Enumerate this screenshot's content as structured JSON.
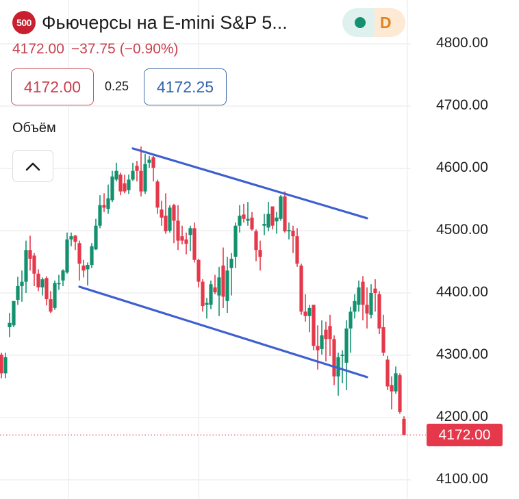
{
  "header": {
    "symbol_badge": "500",
    "title": "Фьючерсы на E-mini S&P 5...",
    "status": {
      "market_dot_color": "#13916f",
      "interval": "D"
    },
    "last_price": "4172.00",
    "change": "−37.75",
    "change_pct": "(−0.90%)"
  },
  "quote": {
    "bid": "4172.00",
    "spread": "0.25",
    "ask": "4172.25"
  },
  "indicator": {
    "volume_label": "Объём",
    "collapse_icon": "chevron-up-icon"
  },
  "colors": {
    "up": "#13916f",
    "down": "#e5384a",
    "trendline": "#3e5fcf",
    "grid": "#efefef",
    "last_price_line": "#e5384a"
  },
  "price_axis": {
    "labels": [
      "4800.00",
      "4700.00",
      "4600.00",
      "4500.00",
      "4400.00",
      "4300.00",
      "4200.00",
      "4100.00"
    ],
    "last_price_tag": "4172.00"
  },
  "chart_data": {
    "type": "candlestick",
    "title": "Фьючерсы на E-mini S&P 500",
    "interval": "D",
    "ylim": [
      4070,
      4870
    ],
    "yticks": [
      4800,
      4700,
      4600,
      4500,
      4400,
      4300,
      4200,
      4100
    ],
    "last_price": 4172.0,
    "grid": true,
    "ohlc_fields": [
      "open",
      "high",
      "low",
      "close"
    ],
    "candles": [
      [
        4301,
        4304,
        4263,
        4271
      ],
      [
        4271,
        4304,
        4263,
        4297
      ],
      [
        4345,
        4368,
        4329,
        4352
      ],
      [
        4348,
        4387,
        4345,
        4387
      ],
      [
        4389,
        4426,
        4381,
        4411
      ],
      [
        4411,
        4436,
        4386,
        4418
      ],
      [
        4418,
        4484,
        4400,
        4469
      ],
      [
        4469,
        4492,
        4436,
        4455
      ],
      [
        4460,
        4464,
        4411,
        4431
      ],
      [
        4431,
        4438,
        4403,
        4409
      ],
      [
        4409,
        4425,
        4396,
        4422
      ],
      [
        4424,
        4427,
        4380,
        4390
      ],
      [
        4390,
        4403,
        4368,
        4370
      ],
      [
        4376,
        4420,
        4373,
        4416
      ],
      [
        4414,
        4429,
        4405,
        4416
      ],
      [
        4420,
        4438,
        4411,
        4436
      ],
      [
        4433,
        4497,
        4431,
        4486
      ],
      [
        4486,
        4497,
        4475,
        4491
      ],
      [
        4492,
        4493,
        4469,
        4482
      ],
      [
        4480,
        4484,
        4420,
        4447
      ],
      [
        4444,
        4453,
        4425,
        4436
      ],
      [
        4438,
        4449,
        4412,
        4445
      ],
      [
        4445,
        4480,
        4440,
        4475
      ],
      [
        4470,
        4519,
        4469,
        4508
      ],
      [
        4508,
        4557,
        4504,
        4541
      ],
      [
        4541,
        4560,
        4530,
        4537
      ],
      [
        4535,
        4574,
        4527,
        4552
      ],
      [
        4549,
        4596,
        4546,
        4587
      ],
      [
        4582,
        4609,
        4579,
        4596
      ],
      [
        4590,
        4593,
        4557,
        4563
      ],
      [
        4576,
        4590,
        4560,
        4563
      ],
      [
        4565,
        4590,
        4559,
        4582
      ],
      [
        4582,
        4609,
        4580,
        4596
      ],
      [
        4604,
        4612,
        4579,
        4596
      ],
      [
        4596,
        4635,
        4555,
        4563
      ],
      [
        4563,
        4623,
        4559,
        4607
      ],
      [
        4609,
        4620,
        4601,
        4614
      ],
      [
        4618,
        4620,
        4579,
        4601
      ],
      [
        4579,
        4582,
        4527,
        4537
      ],
      [
        4534,
        4548,
        4508,
        4521
      ],
      [
        4524,
        4560,
        4495,
        4499
      ],
      [
        4500,
        4541,
        4497,
        4537
      ],
      [
        4541,
        4543,
        4480,
        4516
      ],
      [
        4516,
        4541,
        4469,
        4484
      ],
      [
        4491,
        4508,
        4478,
        4484
      ],
      [
        4486,
        4497,
        4462,
        4479
      ],
      [
        4493,
        4508,
        4467,
        4504
      ],
      [
        4504,
        4513,
        4449,
        4453
      ],
      [
        4453,
        4455,
        4409,
        4418
      ],
      [
        4418,
        4422,
        4370,
        4379
      ],
      [
        4381,
        4392,
        4359,
        4384
      ],
      [
        4381,
        4420,
        4374,
        4414
      ],
      [
        4409,
        4429,
        4398,
        4401
      ],
      [
        4396,
        4442,
        4363,
        4425
      ],
      [
        4444,
        4473,
        4376,
        4394
      ],
      [
        4387,
        4458,
        4368,
        4436
      ],
      [
        4440,
        4464,
        4396,
        4455
      ],
      [
        4458,
        4513,
        4440,
        4508
      ],
      [
        4508,
        4541,
        4497,
        4524
      ],
      [
        4526,
        4543,
        4513,
        4519
      ],
      [
        4516,
        4546,
        4508,
        4519
      ],
      [
        4521,
        4530,
        4500,
        4502
      ],
      [
        4499,
        4502,
        4451,
        4469
      ],
      [
        4469,
        4484,
        4436,
        4458
      ],
      [
        4508,
        4527,
        4493,
        4511
      ],
      [
        4505,
        4546,
        4499,
        4527
      ],
      [
        4539,
        4539,
        4502,
        4508
      ],
      [
        4515,
        4530,
        4495,
        4521
      ],
      [
        4519,
        4557,
        4516,
        4555
      ],
      [
        4555,
        4563,
        4497,
        4499
      ],
      [
        4500,
        4513,
        4486,
        4501
      ],
      [
        4500,
        4508,
        4464,
        4491
      ],
      [
        4491,
        4504,
        4442,
        4447
      ],
      [
        4444,
        4447,
        4365,
        4370
      ],
      [
        4370,
        4398,
        4354,
        4363
      ],
      [
        4363,
        4381,
        4337,
        4376
      ],
      [
        4381,
        4381,
        4308,
        4315
      ],
      [
        4315,
        4348,
        4277,
        4308
      ],
      [
        4310,
        4356,
        4301,
        4332
      ],
      [
        4341,
        4354,
        4290,
        4326
      ],
      [
        4347,
        4365,
        4299,
        4326
      ],
      [
        4326,
        4332,
        4252,
        4266
      ],
      [
        4266,
        4304,
        4235,
        4297
      ],
      [
        4299,
        4308,
        4255,
        4301
      ],
      [
        4288,
        4356,
        4244,
        4343
      ],
      [
        4343,
        4378,
        4304,
        4370
      ],
      [
        4370,
        4398,
        4359,
        4387
      ],
      [
        4381,
        4420,
        4370,
        4409
      ],
      [
        4418,
        4427,
        4356,
        4381
      ],
      [
        4381,
        4409,
        4343,
        4367
      ],
      [
        4365,
        4414,
        4359,
        4400
      ],
      [
        4407,
        4422,
        4370,
        4400
      ],
      [
        4398,
        4403,
        4334,
        4343
      ],
      [
        4345,
        4365,
        4299,
        4304
      ],
      [
        4293,
        4299,
        4244,
        4250
      ],
      [
        4252,
        4266,
        4213,
        4242
      ],
      [
        4242,
        4282,
        4238,
        4271
      ],
      [
        4268,
        4271,
        4206,
        4209
      ],
      [
        4198,
        4202,
        4172,
        4172
      ]
    ],
    "trendlines": [
      {
        "name": "upper-channel",
        "start": {
          "candle_index": 32,
          "price": 4632
        },
        "end": {
          "candle_index": 89,
          "price": 4520
        }
      },
      {
        "name": "lower-channel",
        "start": {
          "candle_index": 19,
          "price": 4410
        },
        "end": {
          "candle_index": 89,
          "price": 4265
        }
      }
    ]
  }
}
